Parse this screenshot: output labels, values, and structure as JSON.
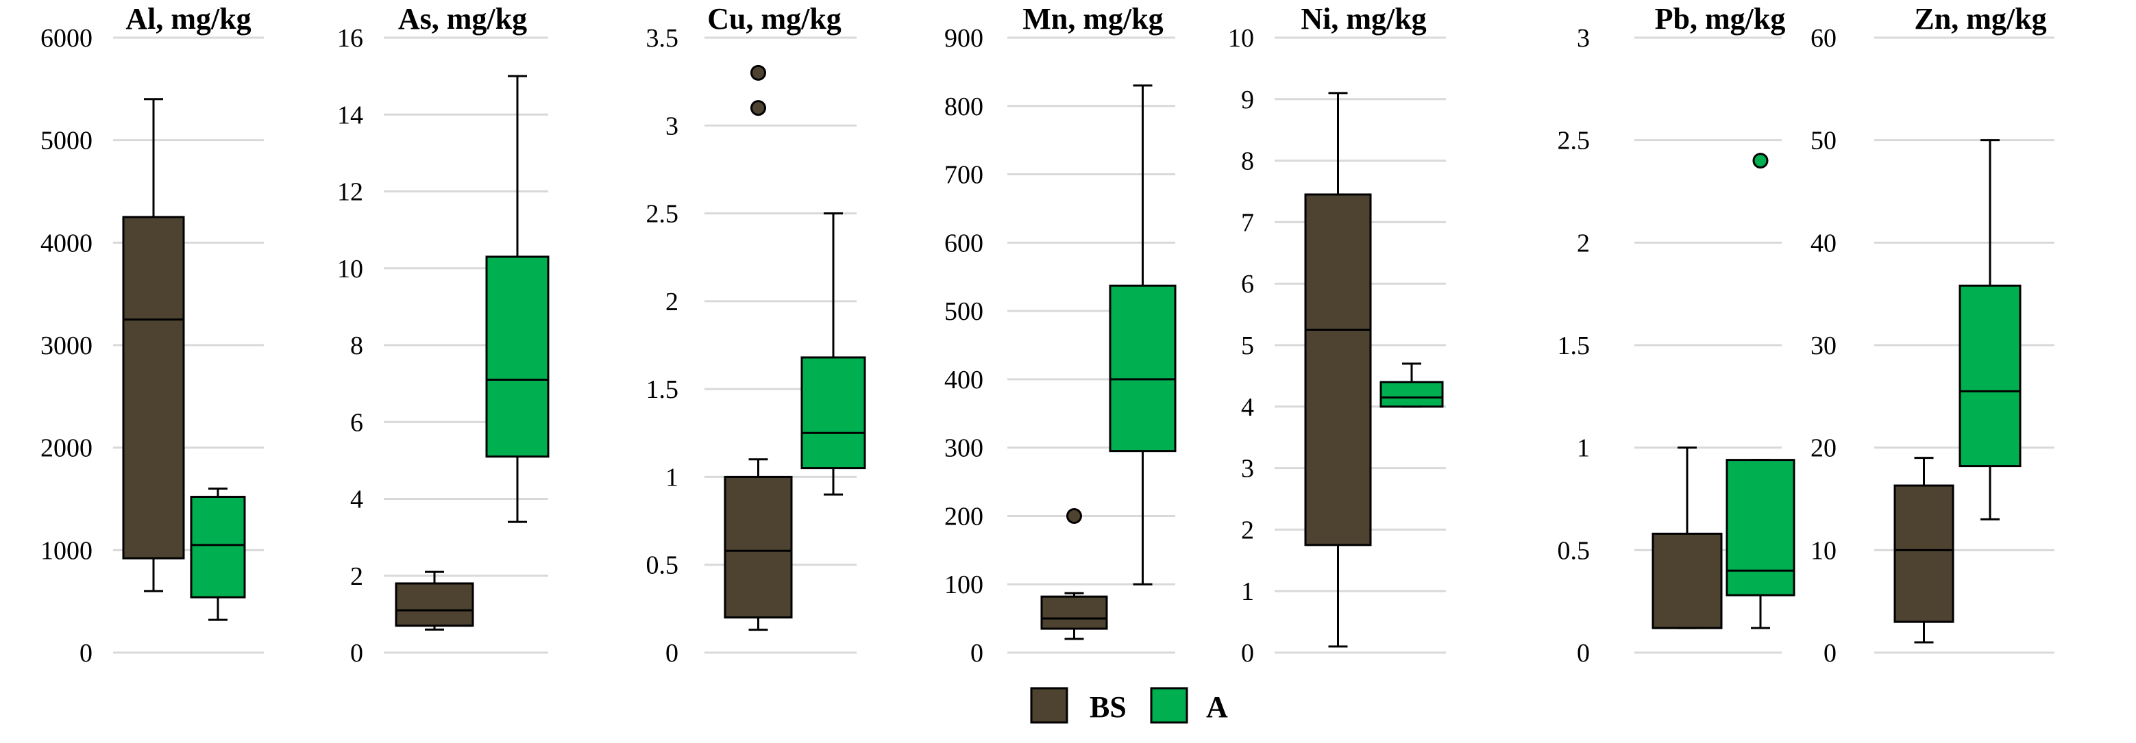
{
  "chart_data": {
    "type": "boxplot",
    "legend": {
      "placement": "bottom-center",
      "entries": [
        {
          "name": "BS",
          "color": "#4d4330"
        },
        {
          "name": "A",
          "color": "#00b050"
        }
      ]
    },
    "panels": [
      {
        "title": "Al, mg/kg",
        "ylim": [
          0,
          6000
        ],
        "ticks": [
          0,
          1000,
          2000,
          3000,
          4000,
          5000,
          6000
        ],
        "tick_labels": [
          "0",
          "1000",
          "2000",
          "3000",
          "4000",
          "5000",
          "6000"
        ],
        "series": [
          {
            "name": "BS",
            "min": 600,
            "q1": 920,
            "median": 3250,
            "q3": 4250,
            "max": 5400,
            "outliers": []
          },
          {
            "name": "A",
            "min": 320,
            "q1": 540,
            "median": 1050,
            "q3": 1520,
            "max": 1600,
            "outliers": []
          }
        ]
      },
      {
        "title": "As, mg/kg",
        "ylim": [
          0,
          16
        ],
        "ticks": [
          0,
          2,
          4,
          6,
          8,
          10,
          12,
          14,
          16
        ],
        "tick_labels": [
          "0",
          "2",
          "4",
          "6",
          "8",
          "10",
          "12",
          "14",
          "16"
        ],
        "series": [
          {
            "name": "BS",
            "min": 0.6,
            "q1": 0.7,
            "median": 1.1,
            "q3": 1.8,
            "max": 2.1,
            "outliers": []
          },
          {
            "name": "A",
            "min": 3.4,
            "q1": 5.1,
            "median": 7.1,
            "q3": 10.3,
            "max": 15.0,
            "outliers": []
          }
        ]
      },
      {
        "title": "Cu, mg/kg",
        "ylim": [
          0,
          3.5
        ],
        "ticks": [
          0,
          0.5,
          1,
          1.5,
          2,
          2.5,
          3,
          3.5
        ],
        "tick_labels": [
          "0",
          "0.5",
          "1",
          "1.5",
          "2",
          "2.5",
          "3",
          "3.5"
        ],
        "series": [
          {
            "name": "BS",
            "min": 0.13,
            "q1": 0.2,
            "median": 0.58,
            "q3": 1.0,
            "max": 1.1,
            "outliers": [
              3.1,
              3.3
            ]
          },
          {
            "name": "A",
            "min": 0.9,
            "q1": 1.05,
            "median": 1.25,
            "q3": 1.68,
            "max": 2.5,
            "outliers": []
          }
        ]
      },
      {
        "title": "Mn, mg/kg",
        "ylim": [
          0,
          900
        ],
        "ticks": [
          0,
          100,
          200,
          300,
          400,
          500,
          600,
          700,
          800,
          900
        ],
        "tick_labels": [
          "0",
          "100",
          "200",
          "300",
          "400",
          "500",
          "600",
          "700",
          "800",
          "900"
        ],
        "series": [
          {
            "name": "BS",
            "min": 20,
            "q1": 35,
            "median": 50,
            "q3": 82,
            "max": 87,
            "outliers": [
              200
            ]
          },
          {
            "name": "A",
            "min": 100,
            "q1": 295,
            "median": 400,
            "q3": 537,
            "max": 830,
            "outliers": []
          }
        ]
      },
      {
        "title": "Ni, mg/kg",
        "ylim": [
          0,
          10
        ],
        "ticks": [
          0,
          1,
          2,
          3,
          4,
          5,
          6,
          7,
          8,
          9,
          10
        ],
        "tick_labels": [
          "0",
          "1",
          "2",
          "3",
          "4",
          "5",
          "6",
          "7",
          "8",
          "9",
          "10"
        ],
        "series": [
          {
            "name": "BS",
            "min": 0.1,
            "q1": 1.75,
            "median": 5.25,
            "q3": 7.45,
            "max": 9.1,
            "outliers": []
          },
          {
            "name": "A",
            "min": 4.0,
            "q1": 4.0,
            "median": 4.15,
            "q3": 4.4,
            "max": 4.7,
            "outliers": []
          }
        ]
      },
      {
        "title": "Pb, mg/kg",
        "ylim": [
          0,
          3
        ],
        "ticks": [
          0,
          0.5,
          1,
          1.5,
          2,
          2.5,
          3
        ],
        "tick_labels": [
          "0",
          "0.5",
          "1",
          "1.5",
          "2",
          "2.5",
          "3"
        ],
        "series": [
          {
            "name": "BS",
            "min": 0.12,
            "q1": 0.12,
            "median": 0.12,
            "q3": 0.58,
            "max": 1.0,
            "outliers": []
          },
          {
            "name": "A",
            "min": 0.12,
            "q1": 0.28,
            "median": 0.4,
            "q3": 0.94,
            "max": 0.94,
            "outliers": [
              2.4
            ]
          }
        ]
      },
      {
        "title": "Zn, mg/kg",
        "ylim": [
          0,
          60
        ],
        "ticks": [
          0,
          10,
          20,
          30,
          40,
          50,
          60
        ],
        "tick_labels": [
          "0",
          "10",
          "20",
          "30",
          "40",
          "50",
          "60"
        ],
        "series": [
          {
            "name": "BS",
            "min": 1,
            "q1": 3,
            "median": 10,
            "q3": 16.3,
            "max": 19,
            "outliers": []
          },
          {
            "name": "A",
            "min": 13,
            "q1": 18.2,
            "median": 25.5,
            "q3": 35.8,
            "max": 50,
            "outliers": []
          }
        ]
      }
    ]
  }
}
